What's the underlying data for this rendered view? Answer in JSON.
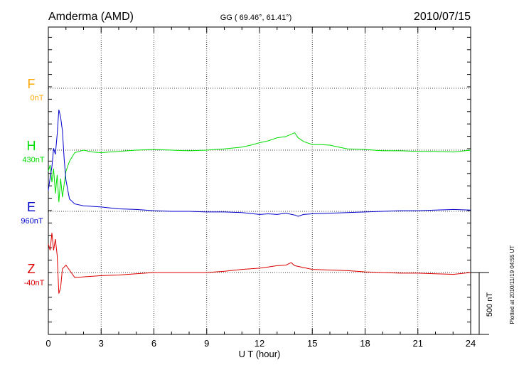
{
  "header": {
    "station": "Amderma (AMD)",
    "coords": "GG ( 69.46°,  61.41°)",
    "date": "2010/07/15"
  },
  "plotted_note": "Plotted at 2010/11/19 04:55 UT",
  "scale_label": "500 nT",
  "colors": {
    "F": "#ffa500",
    "H": "#00dd00",
    "E": "#0000cc",
    "Z": "#dd0000"
  },
  "chart_data": {
    "type": "line",
    "xlabel": "U T (hour)",
    "xlim": [
      0,
      24
    ],
    "xticks": [
      "0",
      "3",
      "6",
      "9",
      "12",
      "15",
      "18",
      "21",
      "24"
    ],
    "scale_bar_nT": 500,
    "series": [
      {
        "name": "F",
        "baseline_label": "0nT",
        "values": []
      },
      {
        "name": "H",
        "baseline_label": "430nT",
        "x": [
          0,
          0.1,
          0.2,
          0.3,
          0.4,
          0.5,
          0.6,
          0.7,
          0.8,
          1.0,
          1.2,
          1.5,
          2.0,
          2.5,
          3.0,
          4,
          5,
          6,
          7,
          8,
          9,
          10,
          11,
          11.5,
          12,
          12.5,
          13,
          13.5,
          14,
          14.2,
          14.5,
          15,
          15.5,
          16,
          16.5,
          17,
          18,
          19,
          20,
          21,
          22,
          23,
          24
        ],
        "values": [
          -170,
          -120,
          -260,
          -150,
          -350,
          -200,
          -420,
          -230,
          -380,
          -170,
          -90,
          -20,
          0,
          -15,
          -20,
          -10,
          0,
          5,
          0,
          -5,
          0,
          10,
          25,
          40,
          60,
          75,
          100,
          110,
          140,
          100,
          70,
          45,
          45,
          40,
          25,
          10,
          5,
          -5,
          -5,
          -10,
          -10,
          -15,
          0
        ]
      },
      {
        "name": "E",
        "baseline_label": "960nT",
        "x": [
          0,
          0.1,
          0.2,
          0.3,
          0.4,
          0.5,
          0.6,
          0.7,
          0.8,
          0.9,
          1.0,
          1.2,
          1.5,
          2.0,
          3.0,
          4,
          5,
          6,
          7,
          8,
          9,
          10,
          11,
          12,
          12.5,
          13,
          13.5,
          14,
          14.2,
          14.5,
          15,
          16,
          17,
          18,
          19,
          20,
          21,
          22,
          23,
          24
        ],
        "values": [
          170,
          270,
          360,
          510,
          460,
          620,
          820,
          760,
          650,
          420,
          250,
          100,
          60,
          45,
          35,
          20,
          15,
          5,
          0,
          0,
          -5,
          -5,
          -10,
          -25,
          -20,
          -25,
          -15,
          -30,
          -40,
          -25,
          -20,
          -15,
          -10,
          -5,
          0,
          5,
          5,
          10,
          15,
          10
        ]
      },
      {
        "name": "Z",
        "baseline_label": "-40nT",
        "x": [
          0,
          0.1,
          0.2,
          0.3,
          0.4,
          0.5,
          0.6,
          0.7,
          0.8,
          1.0,
          1.2,
          1.5,
          2.0,
          3.0,
          4,
          5,
          6,
          7,
          8,
          9,
          10,
          11,
          12,
          12.5,
          13,
          13.5,
          13.8,
          14,
          14.5,
          15,
          16,
          17,
          18,
          19,
          20,
          21,
          22,
          23,
          24
        ],
        "values": [
          230,
          180,
          320,
          180,
          270,
          140,
          -170,
          -120,
          30,
          60,
          20,
          -40,
          -35,
          -25,
          -20,
          -10,
          0,
          0,
          0,
          0,
          10,
          25,
          35,
          45,
          55,
          60,
          80,
          55,
          40,
          25,
          20,
          15,
          5,
          0,
          -5,
          -5,
          -10,
          -15,
          0
        ]
      }
    ]
  }
}
